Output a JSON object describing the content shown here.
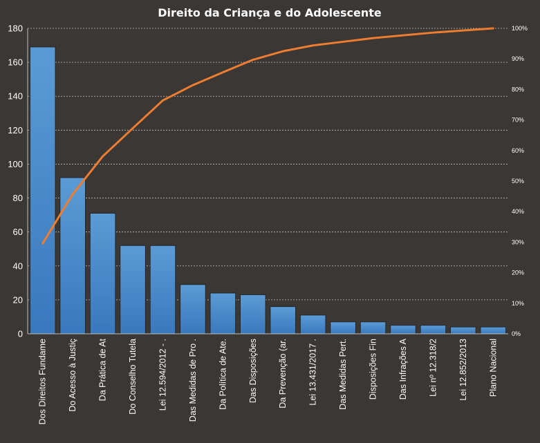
{
  "chart_data": {
    "type": "bar",
    "title": "Direito  da Criança e do Adolescente",
    "categories": [
      "Dos Direitos Fundame",
      "Do Acesso à Justiç",
      "Da Prática de At",
      "Do Conselho Tutela",
      "Lei 12.594/2012 - .",
      "Das Medidas de Pro .",
      "Da Política de Ate.",
      "Das Disposições",
      "Da Prevenção (ar.",
      "Lei 13.431/2017  .",
      "Das Medidas Pert.",
      "Disposições Fin",
      "Das Infrações A",
      "Lei nº 12.318/2",
      "Lei 12.852/2013",
      "Plano Nacional"
    ],
    "series": [
      {
        "values": [
          169,
          92,
          71,
          52,
          52,
          29,
          24,
          23,
          16,
          11,
          7,
          7,
          5,
          5,
          4,
          4
        ]
      },
      {
        "axis": "secondary",
        "type": "line",
        "values": [
          29.6,
          45.7,
          58.1,
          67.3,
          76.4,
          81.4,
          85.6,
          89.7,
          92.5,
          94.4,
          95.6,
          96.8,
          97.7,
          98.6,
          99.3,
          100
        ]
      }
    ],
    "y_left": {
      "min": 0,
      "max": 180,
      "step": 20,
      "ticks": [
        "0",
        "20",
        "40",
        "60",
        "80",
        "100",
        "120",
        "140",
        "160",
        "180"
      ]
    },
    "y_right": {
      "min": 0,
      "max": 100,
      "step": 10,
      "ticks": [
        "0%",
        "10%",
        "20%",
        "30%",
        "40%",
        "50%",
        "60%",
        "70%",
        "80%",
        "90%",
        "100%"
      ]
    },
    "grid": true,
    "legend": "none",
    "colors": {
      "background": "#3a3735",
      "bar": "#5b9bd5",
      "bar_dark": "#3a78bd",
      "line": "#ed7d31",
      "text": "#ffffff",
      "grid": "#d9d9d9"
    }
  }
}
